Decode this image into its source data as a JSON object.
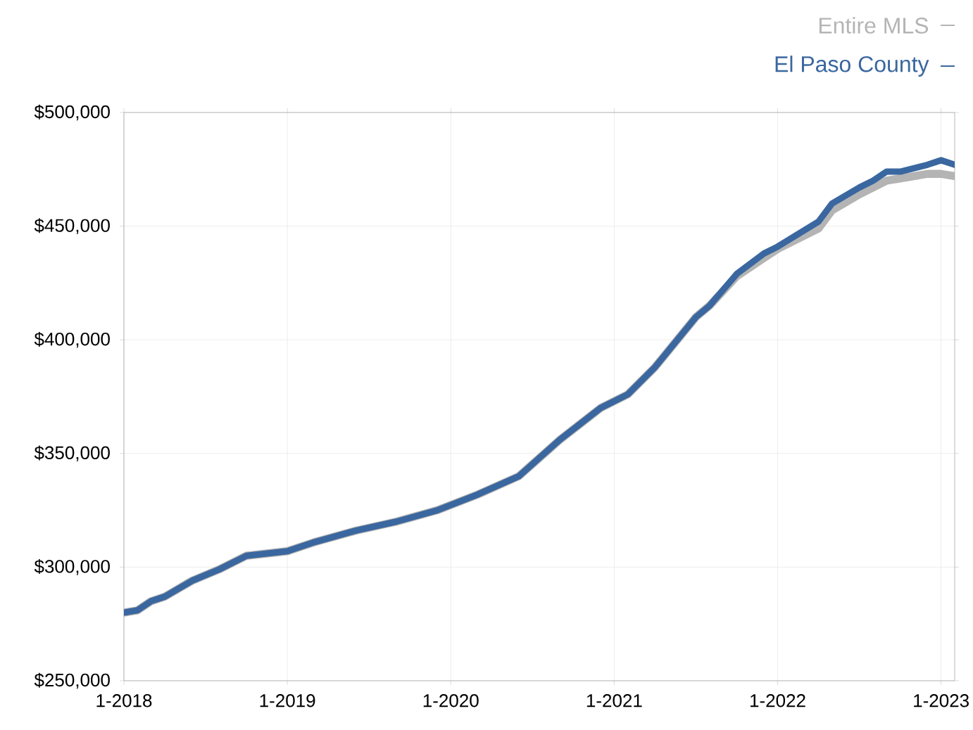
{
  "chart_data": {
    "type": "line",
    "x": [
      "2018-01",
      "2018-02",
      "2018-03",
      "2018-04",
      "2018-06",
      "2018-08",
      "2018-10",
      "2019-01",
      "2019-03",
      "2019-06",
      "2019-09",
      "2019-12",
      "2020-03",
      "2020-06",
      "2020-09",
      "2020-12",
      "2021-02",
      "2021-04",
      "2021-07",
      "2021-08",
      "2021-10",
      "2021-12",
      "2022-01",
      "2022-04",
      "2022-05",
      "2022-07",
      "2022-08",
      "2022-09",
      "2022-10",
      "2022-12",
      "2023-01",
      "2023-02"
    ],
    "series": [
      {
        "name": "Entire MLS",
        "color": "#b4b4b4",
        "values": [
          280000,
          281000,
          285000,
          287000,
          294000,
          299000,
          305000,
          307000,
          311000,
          316000,
          320000,
          325000,
          332000,
          340000,
          356000,
          370000,
          376000,
          388000,
          410000,
          415000,
          428000,
          436000,
          440000,
          449000,
          457000,
          464000,
          467000,
          470000,
          471000,
          473000,
          473000,
          472000
        ]
      },
      {
        "name": "El Paso County",
        "color": "#3a679f",
        "values": [
          280000,
          281000,
          285000,
          287000,
          294000,
          299000,
          305000,
          307000,
          311000,
          316000,
          320000,
          325000,
          332000,
          340000,
          356000,
          370000,
          376000,
          388000,
          410000,
          415000,
          429000,
          438000,
          441000,
          452000,
          460000,
          467000,
          470000,
          474000,
          474000,
          477000,
          479000,
          477000
        ]
      }
    ],
    "xlim": [
      "2018-01",
      "2023-02"
    ],
    "xticks": [
      {
        "value": "2018-01",
        "label": "1-2018"
      },
      {
        "value": "2019-01",
        "label": "1-2019"
      },
      {
        "value": "2020-01",
        "label": "1-2020"
      },
      {
        "value": "2021-01",
        "label": "1-2021"
      },
      {
        "value": "2022-01",
        "label": "1-2022"
      },
      {
        "value": "2023-01",
        "label": "1-2023"
      }
    ],
    "ylim": [
      250000,
      500000
    ],
    "yticks": [
      {
        "value": 250000,
        "label": "$250,000"
      },
      {
        "value": 300000,
        "label": "$300,000"
      },
      {
        "value": 350000,
        "label": "$350,000"
      },
      {
        "value": 400000,
        "label": "$400,000"
      },
      {
        "value": 450000,
        "label": "$450,000"
      },
      {
        "value": 500000,
        "label": "$500,000"
      }
    ],
    "grid": true,
    "legend": "top right",
    "line_style": "solid"
  }
}
